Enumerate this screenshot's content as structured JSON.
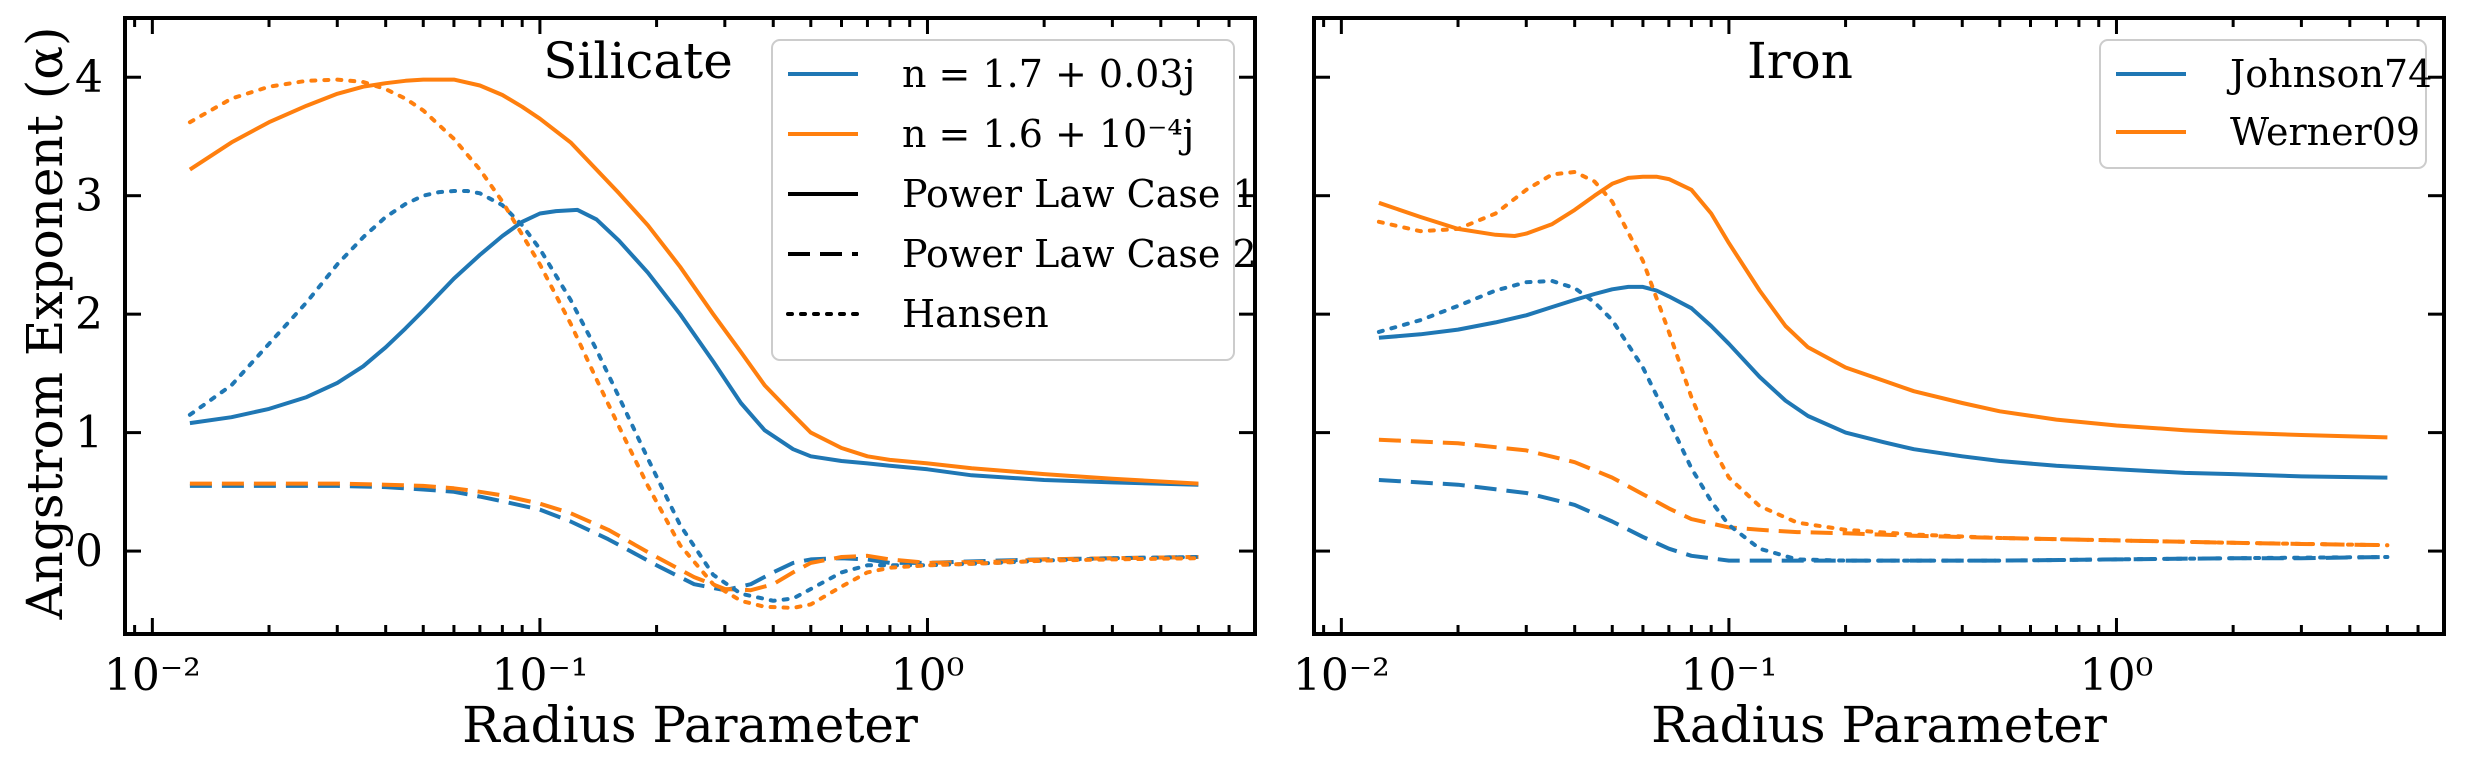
{
  "chart_data": [
    {
      "type": "line",
      "title": "Silicate",
      "xlabel": "Radius Parameter",
      "ylabel": "Angstrom Exponent (α)",
      "xscale": "log",
      "xlim": [
        0.0085,
        7.0
      ],
      "ylim": [
        -0.7,
        4.5
      ],
      "x_tick_labels": [
        "10⁻²",
        "10⁻¹",
        "10⁰"
      ],
      "y_tick_labels": [
        "0",
        "1",
        "2",
        "3",
        "4"
      ],
      "legend_position": "top-right",
      "legend": [
        {
          "label": "n = 1.7 + 0.03j",
          "color": "#1f77b4",
          "style": "solid"
        },
        {
          "label": "n = 1.6 + 10⁻⁴j",
          "color": "#ff7f0e",
          "style": "solid"
        },
        {
          "label": "Power Law Case 1",
          "color": "#000000",
          "style": "solid"
        },
        {
          "label": "Power Law Case 2",
          "color": "#000000",
          "style": "dashed"
        },
        {
          "label": "Hansen",
          "color": "#000000",
          "style": "dotted"
        }
      ],
      "series": [
        {
          "name": "n = 1.7 + 0.03j / Power Law Case 1",
          "color": "#1f77b4",
          "style": "solid",
          "x": [
            0.0125,
            0.016,
            0.02,
            0.025,
            0.03,
            0.035,
            0.04,
            0.045,
            0.05,
            0.06,
            0.07,
            0.08,
            0.09,
            0.1,
            0.11,
            0.125,
            0.14,
            0.16,
            0.19,
            0.23,
            0.28,
            0.33,
            0.38,
            0.45,
            0.5,
            0.6,
            0.7,
            0.8,
            1.0,
            1.3,
            2.0,
            3.0,
            5.0
          ],
          "y": [
            1.08,
            1.13,
            1.2,
            1.3,
            1.42,
            1.56,
            1.72,
            1.88,
            2.03,
            2.3,
            2.5,
            2.66,
            2.78,
            2.85,
            2.87,
            2.88,
            2.8,
            2.62,
            2.35,
            2.0,
            1.6,
            1.25,
            1.02,
            0.86,
            0.8,
            0.76,
            0.74,
            0.72,
            0.69,
            0.64,
            0.6,
            0.58,
            0.56
          ]
        },
        {
          "name": "n = 1.6 + 10⁻⁴j / Power Law Case 1",
          "color": "#ff7f0e",
          "style": "solid",
          "x": [
            0.0125,
            0.016,
            0.02,
            0.025,
            0.03,
            0.035,
            0.04,
            0.045,
            0.05,
            0.06,
            0.07,
            0.08,
            0.09,
            0.1,
            0.12,
            0.14,
            0.16,
            0.19,
            0.23,
            0.28,
            0.33,
            0.38,
            0.45,
            0.5,
            0.6,
            0.7,
            0.8,
            1.0,
            1.3,
            2.0,
            3.0,
            5.0
          ],
          "y": [
            3.22,
            3.45,
            3.62,
            3.76,
            3.86,
            3.92,
            3.95,
            3.97,
            3.98,
            3.98,
            3.93,
            3.85,
            3.75,
            3.65,
            3.45,
            3.22,
            3.02,
            2.75,
            2.4,
            2.0,
            1.68,
            1.4,
            1.15,
            1.0,
            0.87,
            0.8,
            0.77,
            0.74,
            0.7,
            0.65,
            0.61,
            0.57
          ]
        },
        {
          "name": "n = 1.7 + 0.03j / Power Law Case 2",
          "color": "#1f77b4",
          "style": "dashed",
          "x": [
            0.0125,
            0.02,
            0.03,
            0.04,
            0.05,
            0.06,
            0.07,
            0.08,
            0.1,
            0.12,
            0.15,
            0.2,
            0.25,
            0.3,
            0.35,
            0.4,
            0.45,
            0.5,
            0.6,
            0.7,
            0.8,
            1.0,
            1.5,
            2.0,
            3.0,
            5.0
          ],
          "y": [
            0.55,
            0.55,
            0.55,
            0.54,
            0.52,
            0.5,
            0.46,
            0.42,
            0.35,
            0.25,
            0.1,
            -0.12,
            -0.28,
            -0.33,
            -0.28,
            -0.18,
            -0.1,
            -0.07,
            -0.06,
            -0.07,
            -0.1,
            -0.1,
            -0.08,
            -0.07,
            -0.06,
            -0.05
          ]
        },
        {
          "name": "n = 1.6 + 10⁻⁴j / Power Law Case 2",
          "color": "#ff7f0e",
          "style": "dashed",
          "x": [
            0.0125,
            0.02,
            0.03,
            0.04,
            0.05,
            0.06,
            0.07,
            0.08,
            0.1,
            0.12,
            0.15,
            0.2,
            0.25,
            0.3,
            0.35,
            0.4,
            0.45,
            0.5,
            0.6,
            0.7,
            0.8,
            1.0,
            1.5,
            2.0,
            3.0,
            5.0
          ],
          "y": [
            0.57,
            0.57,
            0.57,
            0.56,
            0.55,
            0.53,
            0.5,
            0.47,
            0.4,
            0.32,
            0.18,
            -0.05,
            -0.22,
            -0.32,
            -0.33,
            -0.28,
            -0.18,
            -0.1,
            -0.05,
            -0.04,
            -0.07,
            -0.1,
            -0.09,
            -0.07,
            -0.06,
            -0.05
          ]
        },
        {
          "name": "n = 1.7 + 0.03j / Hansen",
          "color": "#1f77b4",
          "style": "dotted",
          "x": [
            0.0125,
            0.016,
            0.02,
            0.025,
            0.03,
            0.035,
            0.04,
            0.045,
            0.05,
            0.055,
            0.06,
            0.065,
            0.07,
            0.08,
            0.09,
            0.1,
            0.12,
            0.14,
            0.16,
            0.19,
            0.23,
            0.28,
            0.33,
            0.4,
            0.45,
            0.5,
            0.6,
            0.7,
            0.8,
            1.0,
            1.5,
            2.0,
            3.0,
            5.0
          ],
          "y": [
            1.15,
            1.4,
            1.75,
            2.1,
            2.42,
            2.65,
            2.82,
            2.93,
            3.0,
            3.03,
            3.04,
            3.04,
            3.02,
            2.92,
            2.75,
            2.55,
            2.12,
            1.7,
            1.3,
            0.78,
            0.22,
            -0.2,
            -0.36,
            -0.42,
            -0.4,
            -0.32,
            -0.18,
            -0.12,
            -0.12,
            -0.12,
            -0.1,
            -0.08,
            -0.06,
            -0.05
          ]
        },
        {
          "name": "n = 1.6 + 10⁻⁴j / Hansen",
          "color": "#ff7f0e",
          "style": "dotted",
          "x": [
            0.0125,
            0.016,
            0.02,
            0.025,
            0.03,
            0.035,
            0.04,
            0.045,
            0.05,
            0.06,
            0.07,
            0.08,
            0.1,
            0.12,
            0.14,
            0.16,
            0.19,
            0.23,
            0.28,
            0.33,
            0.38,
            0.45,
            0.5,
            0.6,
            0.7,
            0.8,
            1.0,
            1.5,
            2.0,
            3.0,
            5.0
          ],
          "y": [
            3.62,
            3.82,
            3.92,
            3.97,
            3.98,
            3.96,
            3.9,
            3.82,
            3.72,
            3.48,
            3.22,
            2.95,
            2.42,
            1.92,
            1.45,
            1.05,
            0.55,
            0.05,
            -0.28,
            -0.42,
            -0.47,
            -0.48,
            -0.45,
            -0.3,
            -0.18,
            -0.14,
            -0.12,
            -0.1,
            -0.08,
            -0.07,
            -0.06
          ]
        }
      ]
    },
    {
      "type": "line",
      "title": "Iron",
      "xlabel": "Radius Parameter",
      "ylabel": "",
      "xscale": "log",
      "xlim": [
        0.0085,
        7.0
      ],
      "ylim": [
        -0.7,
        4.5
      ],
      "x_tick_labels": [
        "10⁻²",
        "10⁻¹",
        "10⁰"
      ],
      "legend_position": "top-right",
      "legend": [
        {
          "label": "Johnson74",
          "color": "#1f77b4",
          "style": "solid"
        },
        {
          "label": "Werner09",
          "color": "#ff7f0e",
          "style": "solid"
        }
      ],
      "series": [
        {
          "name": "Johnson74 / Power Law Case 1",
          "color": "#1f77b4",
          "style": "solid",
          "x": [
            0.0125,
            0.016,
            0.02,
            0.025,
            0.03,
            0.035,
            0.04,
            0.045,
            0.05,
            0.055,
            0.06,
            0.065,
            0.07,
            0.08,
            0.09,
            0.1,
            0.12,
            0.14,
            0.16,
            0.2,
            0.25,
            0.3,
            0.4,
            0.5,
            0.7,
            1.0,
            1.5,
            2.0,
            3.0,
            5.0
          ],
          "y": [
            1.8,
            1.83,
            1.87,
            1.93,
            1.99,
            2.06,
            2.12,
            2.17,
            2.21,
            2.23,
            2.23,
            2.2,
            2.15,
            2.05,
            1.9,
            1.75,
            1.47,
            1.27,
            1.14,
            1.0,
            0.92,
            0.86,
            0.8,
            0.76,
            0.72,
            0.69,
            0.66,
            0.65,
            0.63,
            0.62
          ]
        },
        {
          "name": "Werner09 / Power Law Case 1",
          "color": "#ff7f0e",
          "style": "solid",
          "x": [
            0.0125,
            0.016,
            0.02,
            0.025,
            0.028,
            0.03,
            0.035,
            0.04,
            0.045,
            0.05,
            0.055,
            0.06,
            0.065,
            0.07,
            0.08,
            0.09,
            0.1,
            0.12,
            0.14,
            0.16,
            0.2,
            0.25,
            0.3,
            0.4,
            0.5,
            0.7,
            1.0,
            1.5,
            2.0,
            3.0,
            5.0
          ],
          "y": [
            2.94,
            2.82,
            2.72,
            2.67,
            2.66,
            2.68,
            2.76,
            2.88,
            3.0,
            3.1,
            3.15,
            3.16,
            3.16,
            3.14,
            3.05,
            2.85,
            2.6,
            2.2,
            1.9,
            1.72,
            1.55,
            1.44,
            1.35,
            1.25,
            1.18,
            1.11,
            1.06,
            1.02,
            1.0,
            0.98,
            0.96
          ]
        },
        {
          "name": "Johnson74 / Power Law Case 2",
          "color": "#1f77b4",
          "style": "dashed",
          "x": [
            0.0125,
            0.02,
            0.03,
            0.04,
            0.05,
            0.06,
            0.07,
            0.08,
            0.1,
            0.12,
            0.15,
            0.2,
            0.3,
            0.5,
            1.0,
            2.0,
            3.0,
            5.0
          ],
          "y": [
            0.6,
            0.56,
            0.49,
            0.39,
            0.25,
            0.12,
            0.02,
            -0.04,
            -0.08,
            -0.08,
            -0.08,
            -0.08,
            -0.08,
            -0.08,
            -0.07,
            -0.06,
            -0.06,
            -0.05
          ]
        },
        {
          "name": "Werner09 / Power Law Case 2",
          "color": "#ff7f0e",
          "style": "dashed",
          "x": [
            0.0125,
            0.02,
            0.03,
            0.04,
            0.05,
            0.06,
            0.07,
            0.08,
            0.1,
            0.12,
            0.15,
            0.2,
            0.3,
            0.5,
            1.0,
            2.0,
            3.0,
            5.0
          ],
          "y": [
            0.94,
            0.91,
            0.85,
            0.75,
            0.62,
            0.48,
            0.36,
            0.27,
            0.2,
            0.18,
            0.16,
            0.15,
            0.13,
            0.11,
            0.09,
            0.07,
            0.06,
            0.05
          ]
        },
        {
          "name": "Johnson74 / Hansen",
          "color": "#1f77b4",
          "style": "dotted",
          "x": [
            0.0125,
            0.016,
            0.02,
            0.025,
            0.03,
            0.035,
            0.04,
            0.045,
            0.05,
            0.06,
            0.07,
            0.08,
            0.09,
            0.1,
            0.12,
            0.15,
            0.2,
            0.3,
            0.5,
            1.0,
            2.0,
            5.0
          ],
          "y": [
            1.85,
            1.95,
            2.07,
            2.2,
            2.27,
            2.28,
            2.22,
            2.1,
            1.95,
            1.55,
            1.1,
            0.7,
            0.42,
            0.22,
            0.02,
            -0.07,
            -0.08,
            -0.08,
            -0.08,
            -0.07,
            -0.06,
            -0.05
          ]
        },
        {
          "name": "Werner09 / Hansen",
          "color": "#ff7f0e",
          "style": "dotted",
          "x": [
            0.0125,
            0.016,
            0.02,
            0.025,
            0.03,
            0.035,
            0.04,
            0.045,
            0.05,
            0.06,
            0.07,
            0.08,
            0.09,
            0.1,
            0.12,
            0.15,
            0.2,
            0.3,
            0.5,
            1.0,
            2.0,
            5.0
          ],
          "y": [
            2.78,
            2.7,
            2.72,
            2.85,
            3.05,
            3.18,
            3.2,
            3.12,
            2.95,
            2.45,
            1.85,
            1.3,
            0.9,
            0.62,
            0.38,
            0.24,
            0.18,
            0.14,
            0.11,
            0.09,
            0.07,
            0.05
          ]
        }
      ]
    }
  ]
}
